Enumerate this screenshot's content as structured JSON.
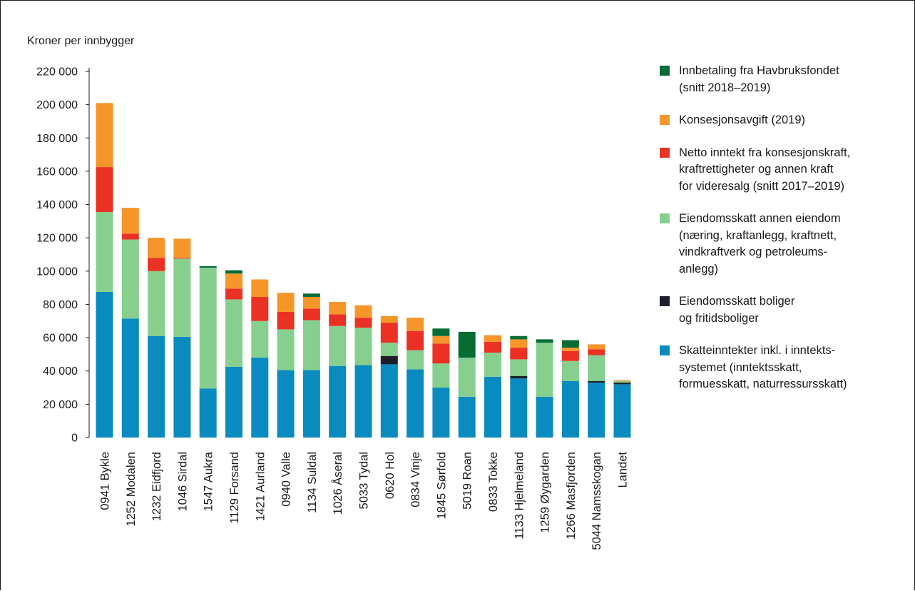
{
  "chart_data": {
    "type": "bar",
    "stacked": true,
    "title": "",
    "ylabel": "Kroner per innbygger",
    "xlabel": "",
    "ylim": [
      0,
      220000
    ],
    "yticks": [
      {
        "value": 0,
        "label": "0"
      },
      {
        "value": 20000,
        "label": "20 000"
      },
      {
        "value": 40000,
        "label": "40 000"
      },
      {
        "value": 60000,
        "label": "60 000"
      },
      {
        "value": 80000,
        "label": "80 000"
      },
      {
        "value": 100000,
        "label": "100 000"
      },
      {
        "value": 120000,
        "label": "120 000"
      },
      {
        "value": 140000,
        "label": "140 000"
      },
      {
        "value": 160000,
        "label": "160 000"
      },
      {
        "value": 180000,
        "label": "180 000"
      },
      {
        "value": 200000,
        "label": "200 000"
      },
      {
        "value": 220000,
        "label": "220 000"
      }
    ],
    "grid": false,
    "legend_position": "right",
    "categories": [
      "0941 Bykle",
      "1252 Modalen",
      "1232 Eidfjord",
      "1046 Sirdal",
      "1547 Aukra",
      "1129 Forsand",
      "1421 Aurland",
      "0940 Valle",
      "1134 Suldal",
      "1026 Åseral",
      "5033 Tydal",
      "0620 Hol",
      "0834 Vinje",
      "1845 Sørfold",
      "5019 Roan",
      "0833 Tokke",
      "1133 Hjelmeland",
      "1259 Øygarden",
      "1266 Masfjorden",
      "5044 Namsskogan",
      "Landet"
    ],
    "series": [
      {
        "key": "skatt",
        "name": "Skatteinntekter inkl. i inntektssystemet (inntektsskatt, formuesskatt, naturressursskatt)",
        "color": "#0a8bc0",
        "values": [
          87500,
          71500,
          61000,
          60500,
          29500,
          42500,
          48000,
          40500,
          40500,
          43000,
          43500,
          44000,
          41000,
          30000,
          24500,
          36500,
          35500,
          24500,
          34000,
          33000,
          32000
        ]
      },
      {
        "key": "bolig",
        "name": "Eiendomsskatt boliger og fritidsboliger",
        "color": "#1c1f2a",
        "values": [
          0,
          0,
          0,
          0,
          0,
          0,
          0,
          0,
          0,
          0,
          0,
          5000,
          0,
          0,
          0,
          0,
          1500,
          0,
          0,
          1000,
          1000
        ]
      },
      {
        "key": "annen",
        "name": "Eiendomsskatt annen eiendom (næring, kraftanlegg, kraftnett, vindkraftverk og petroleumsanlegg)",
        "color": "#86cf8f",
        "values": [
          48000,
          47500,
          39000,
          47000,
          72500,
          40500,
          22000,
          24500,
          30000,
          24000,
          22500,
          8000,
          11500,
          14500,
          23500,
          14500,
          10000,
          32500,
          12000,
          15500,
          1000
        ]
      },
      {
        "key": "netto",
        "name": "Netto inntekt fra konsesjonskraft, kraftrettigheter og annen kraft for videresalg (snitt 2017–2019)",
        "color": "#ea3124",
        "values": [
          27000,
          3500,
          8000,
          500,
          0,
          6500,
          14500,
          10500,
          7000,
          7000,
          6000,
          12000,
          11500,
          12000,
          0,
          6500,
          7000,
          0,
          6000,
          3500,
          0
        ]
      },
      {
        "key": "konsesjon",
        "name": "Konsesjonsavgift (2019)",
        "color": "#f6962a",
        "values": [
          38500,
          15500,
          12000,
          11500,
          0,
          9000,
          10500,
          11500,
          7000,
          7500,
          7500,
          4000,
          8000,
          4500,
          0,
          4000,
          5000,
          0,
          2000,
          3000,
          500
        ]
      },
      {
        "key": "havbruk",
        "name": "Innbetaling fra Havbruksfondet (snitt 2018–2019)",
        "color": "#076b34",
        "values": [
          0,
          0,
          0,
          0,
          1000,
          2000,
          0,
          0,
          2000,
          0,
          0,
          0,
          0,
          4500,
          15500,
          0,
          2000,
          2000,
          4500,
          0,
          0
        ]
      }
    ]
  },
  "legend": [
    {
      "color": "#076b34",
      "lines": [
        "Innbetaling fra Havbruksfondet",
        "(snitt 2018–2019)"
      ]
    },
    {
      "color": "#f6962a",
      "lines": [
        "Konsesjonsavgift (2019)"
      ]
    },
    {
      "color": "#ea3124",
      "lines": [
        "Netto inntekt fra konsesjonskraft,",
        "kraftrettigheter og annen kraft",
        "for videresalg (snitt 2017–2019)"
      ]
    },
    {
      "color": "#86cf8f",
      "lines": [
        "Eiendomsskatt annen eiendom",
        "(næring, kraftanlegg, kraftnett,",
        "vindkraftverk og petroleums-",
        "anlegg)"
      ]
    },
    {
      "color": "#1c1f2a",
      "lines": [
        "Eiendomsskatt boliger",
        "og fritidsboliger"
      ]
    },
    {
      "color": "#0a8bc0",
      "lines": [
        "Skatteinntekter inkl. i inntekts-",
        "systemet (inntektsskatt,",
        "formuesskatt, naturressursskatt)"
      ]
    }
  ]
}
